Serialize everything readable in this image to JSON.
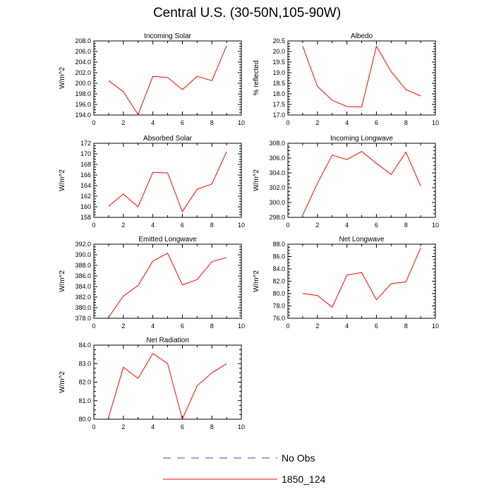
{
  "page": {
    "title": "Central U.S. (30-50N,105-90W)"
  },
  "colors": {
    "model": "#ff0000",
    "obs": "#4444cc",
    "axis": "#000000"
  },
  "legend": {
    "items": [
      {
        "label": "No Obs",
        "style": "dashed",
        "color": "#4444cc"
      },
      {
        "label": "1850_124",
        "style": "solid",
        "color": "#ff0000"
      }
    ]
  },
  "chart_data": [
    {
      "type": "line",
      "title": "Incoming Solar",
      "ylabel": "W/m^2",
      "xlabel": "",
      "xlim": [
        0,
        10
      ],
      "ylim": [
        194,
        208
      ],
      "xticks": [
        "0",
        "2",
        "4",
        "6",
        "8",
        "10"
      ],
      "yticks": [
        "194.0",
        "196.0",
        "198.0",
        "200.0",
        "202.0",
        "204.0",
        "206.0",
        "208.0"
      ],
      "x": [
        1,
        2,
        3,
        4,
        5,
        6,
        7,
        8,
        9
      ],
      "series": [
        {
          "name": "1850_124",
          "values": [
            200.5,
            198.4,
            194.1,
            201.3,
            201.1,
            198.8,
            201.3,
            200.5,
            207.1
          ]
        }
      ]
    },
    {
      "type": "line",
      "title": "Albedo",
      "ylabel": "% reflected",
      "xlabel": "",
      "xlim": [
        0,
        10
      ],
      "ylim": [
        17,
        20.5
      ],
      "xticks": [
        "0",
        "2",
        "4",
        "6",
        "8",
        "10"
      ],
      "yticks": [
        "17.0",
        "17.5",
        "18.0",
        "18.5",
        "19.0",
        "19.5",
        "20.0",
        "20.5"
      ],
      "x": [
        1,
        2,
        3,
        4,
        5,
        6,
        7,
        8,
        9
      ],
      "series": [
        {
          "name": "1850_124",
          "values": [
            20.25,
            18.35,
            17.7,
            17.4,
            17.38,
            20.25,
            19.05,
            18.2,
            17.9
          ]
        }
      ]
    },
    {
      "type": "line",
      "title": "Absorbed Solar",
      "ylabel": "W/m^2",
      "xlabel": "",
      "xlim": [
        0,
        10
      ],
      "ylim": [
        158,
        172
      ],
      "xticks": [
        "0",
        "2",
        "4",
        "6",
        "8",
        "10"
      ],
      "yticks": [
        "158",
        "160",
        "162",
        "164",
        "166",
        "168",
        "170",
        "172"
      ],
      "x": [
        1,
        2,
        3,
        4,
        5,
        6,
        7,
        8,
        9
      ],
      "series": [
        {
          "name": "1850_124",
          "values": [
            160.1,
            162.4,
            160.0,
            166.5,
            166.4,
            159.1,
            163.3,
            164.3,
            170.4
          ]
        }
      ]
    },
    {
      "type": "line",
      "title": "Incoming Longwave",
      "ylabel": "W/m^2",
      "xlabel": "",
      "xlim": [
        0,
        10
      ],
      "ylim": [
        298,
        308
      ],
      "xticks": [
        "0",
        "2",
        "4",
        "6",
        "8",
        "10"
      ],
      "yticks": [
        "298.0",
        "300.0",
        "302.0",
        "304.0",
        "306.0",
        "308.0"
      ],
      "x": [
        1,
        2,
        3,
        4,
        5,
        6,
        7,
        8,
        9
      ],
      "series": [
        {
          "name": "1850_124",
          "values": [
            298.3,
            302.6,
            306.4,
            305.8,
            306.9,
            305.3,
            303.8,
            306.8,
            302.2
          ]
        }
      ]
    },
    {
      "type": "line",
      "title": "Emitted Longwave",
      "ylabel": "W/m^2",
      "xlabel": "",
      "xlim": [
        0,
        10
      ],
      "ylim": [
        378,
        392
      ],
      "xticks": [
        "0",
        "2",
        "4",
        "6",
        "8",
        "10"
      ],
      "yticks": [
        "378.0",
        "380.0",
        "382.0",
        "384.0",
        "386.0",
        "388.0",
        "390.0",
        "392.0"
      ],
      "x": [
        1,
        2,
        3,
        4,
        5,
        6,
        7,
        8,
        9
      ],
      "series": [
        {
          "name": "1850_124",
          "values": [
            378.2,
            382.2,
            384.2,
            388.8,
            390.3,
            384.3,
            385.3,
            388.7,
            389.5
          ]
        }
      ]
    },
    {
      "type": "line",
      "title": "Net Longwave",
      "ylabel": "W/m^2",
      "xlabel": "",
      "xlim": [
        0,
        10
      ],
      "ylim": [
        76,
        88
      ],
      "xticks": [
        "0",
        "2",
        "4",
        "6",
        "8",
        "10"
      ],
      "yticks": [
        "76.0",
        "78.0",
        "80.0",
        "82.0",
        "84.0",
        "86.0",
        "88.0"
      ],
      "x": [
        1,
        2,
        3,
        4,
        5,
        6,
        7,
        8,
        9
      ],
      "series": [
        {
          "name": "1850_124",
          "values": [
            80.0,
            79.7,
            77.8,
            83.0,
            83.4,
            79.0,
            81.6,
            81.9,
            87.4
          ]
        }
      ]
    },
    {
      "type": "line",
      "title": "Net Radiation",
      "ylabel": "W/m^2",
      "xlabel": "",
      "xlim": [
        0,
        10
      ],
      "ylim": [
        80,
        84
      ],
      "xticks": [
        "0",
        "2",
        "4",
        "6",
        "8",
        "10"
      ],
      "yticks": [
        "80.0",
        "81.0",
        "82.0",
        "83.0",
        "84.0"
      ],
      "x": [
        1,
        2,
        3,
        4,
        5,
        6,
        7,
        8,
        9
      ],
      "series": [
        {
          "name": "1850_124",
          "values": [
            80.1,
            82.8,
            82.2,
            83.55,
            83.0,
            80.0,
            81.8,
            82.5,
            83.0
          ]
        }
      ]
    }
  ]
}
